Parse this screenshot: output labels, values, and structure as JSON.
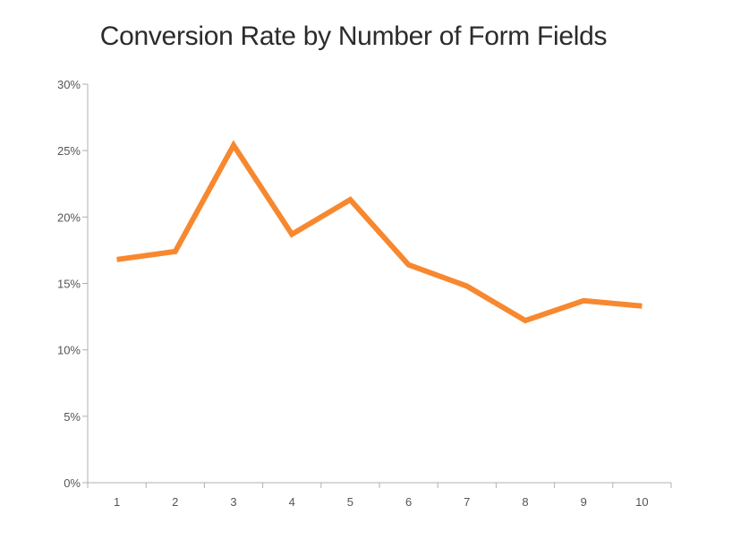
{
  "chart_data": {
    "type": "line",
    "title": "Conversion Rate by Number of Form Fields",
    "xlabel": "",
    "ylabel": "",
    "x": [
      "1",
      "2",
      "3",
      "4",
      "5",
      "6",
      "7",
      "8",
      "9",
      "10"
    ],
    "series": [
      {
        "values": [
          16.8,
          17.4,
          25.4,
          18.7,
          21.3,
          16.4,
          14.8,
          12.2,
          13.7,
          13.3
        ]
      }
    ],
    "ylim": [
      0,
      30
    ],
    "yticks": [
      0,
      5,
      10,
      15,
      20,
      25,
      30
    ],
    "ytick_labels": [
      "0%",
      "5%",
      "10%",
      "15%",
      "20%",
      "25%",
      "30%"
    ],
    "grid": false,
    "legend": "none",
    "colors": {
      "line": "#f7882f",
      "axis": "#b0b0b0",
      "text": "#555555",
      "title": "#2b2b2b"
    }
  }
}
